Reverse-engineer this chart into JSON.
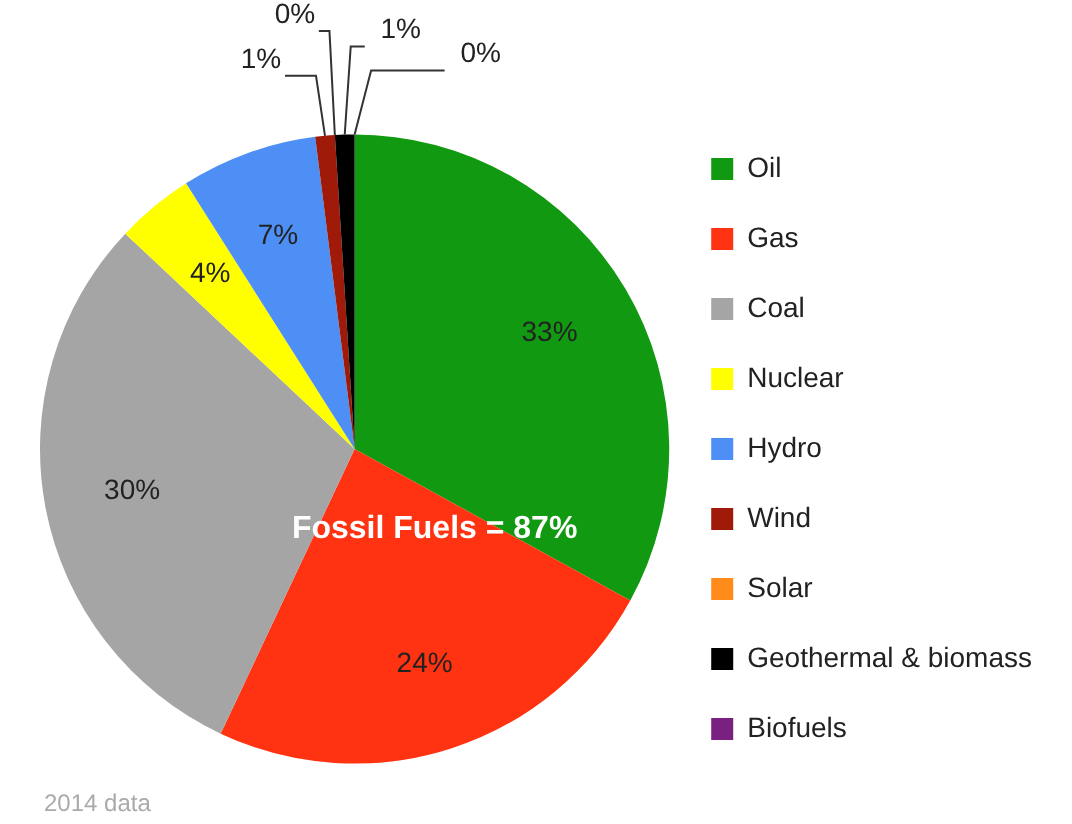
{
  "chart_data": {
    "type": "pie",
    "categories": [
      "Oil",
      "Gas",
      "Coal",
      "Nuclear",
      "Hydro",
      "Wind",
      "Solar",
      "Geothermal & biomass",
      "Biofuels"
    ],
    "values": [
      33,
      24,
      30,
      4,
      7,
      1,
      0,
      1,
      0
    ],
    "colors": [
      "#119911",
      "#ff3311",
      "#a5a5a5",
      "#ffff00",
      "#4d8ff5",
      "#a01a0a",
      "#ff8c1a",
      "#000000",
      "#7a2080"
    ],
    "value_labels": [
      "33%",
      "24%",
      "30%",
      "4%",
      "7%",
      "1%",
      "0%",
      "1%",
      "0%"
    ],
    "legend": "right",
    "annotations": [
      "Fossil Fuels = 87%",
      "2014 data"
    ]
  }
}
